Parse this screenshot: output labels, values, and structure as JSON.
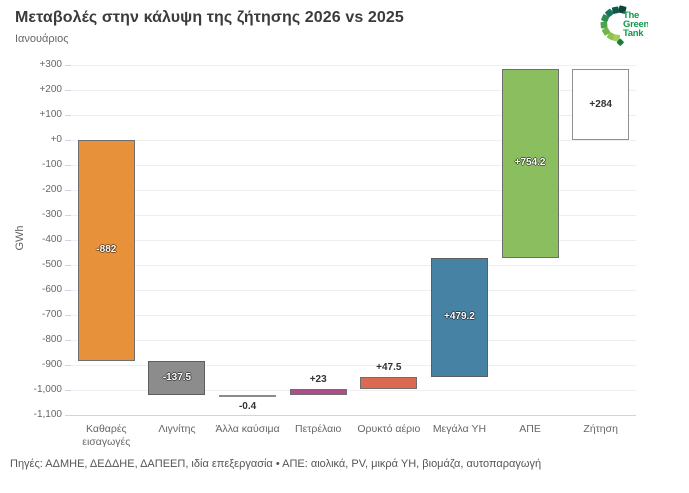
{
  "header": {
    "title": "Μεταβολές στην κάλυψη της ζήτησης 2026 vs 2025",
    "subtitle": "Ιανουάριος"
  },
  "logo": {
    "name": "The Green Tank",
    "lines": [
      "The",
      "Green",
      "Tank"
    ],
    "text_color": "#0f9b49"
  },
  "footer": {
    "sources": "Πηγές: ΑΔΜΗΕ, ΔΕΔΔΗΕ, ΔΑΠΕΕΠ, ιδία επεξεργασία • ΑΠΕ: αιολικά, PV, μικρά ΥΗ, βιομάζα, αυτοπαραγωγή"
  },
  "chart_data": {
    "type": "bar",
    "subtype": "waterfall",
    "title": "Μεταβολές στην κάλυψη της ζήτησης 2026 vs 2025",
    "subtitle": "Ιανουάριος",
    "xlabel": "",
    "ylabel": "GWh",
    "ylim": [
      -1100,
      300
    ],
    "ytick_step": 100,
    "grid": true,
    "legend": false,
    "categories": [
      "Καθαρές εισαγωγές",
      "Λιγνίτης",
      "Άλλα καύσιμα",
      "Πετρέλαιο",
      "Ορυκτό αέριο",
      "Μεγάλα ΥΗ",
      "ΑΠΕ",
      "Ζήτηση"
    ],
    "values": [
      -882,
      -137.5,
      -0.4,
      23,
      47.5,
      479.2,
      754.2,
      284
    ],
    "yticks": [
      {
        "value": 300,
        "label": "+300"
      },
      {
        "value": 200,
        "label": "+200"
      },
      {
        "value": 100,
        "label": "+100"
      },
      {
        "value": 0,
        "label": "+0"
      },
      {
        "value": -100,
        "label": "-100"
      },
      {
        "value": -200,
        "label": "-200"
      },
      {
        "value": -300,
        "label": "-300"
      },
      {
        "value": -400,
        "label": "-400"
      },
      {
        "value": -500,
        "label": "-500"
      },
      {
        "value": -600,
        "label": "-600"
      },
      {
        "value": -700,
        "label": "-700"
      },
      {
        "value": -800,
        "label": "-800"
      },
      {
        "value": -900,
        "label": "-900"
      },
      {
        "value": -1000,
        "label": "-1,000"
      },
      {
        "value": -1100,
        "label": "-1,100"
      }
    ],
    "points": [
      {
        "category": "Καθαρές εισαγωγές",
        "value": -882,
        "label": "-882",
        "from": 0,
        "to": -882,
        "color": "#e8913b",
        "border": "#6e6e6e",
        "label_pos": "inside",
        "label_style": "light"
      },
      {
        "category": "Λιγνίτης",
        "value": -137.5,
        "label": "-137.5",
        "from": -882,
        "to": -1019.5,
        "color": "#8c8c8c",
        "border": "#5e5e5e",
        "label_pos": "inside",
        "label_style": "light"
      },
      {
        "category": "Άλλα καύσιμα",
        "value": -0.4,
        "label": "-0.4",
        "from": -1019.5,
        "to": -1019.9,
        "color": "#8c8c8c",
        "border": "#8c8c8c",
        "label_pos": "below",
        "label_style": "dark"
      },
      {
        "category": "Πετρέλαιο",
        "value": 23,
        "label": "+23",
        "from": -1019.9,
        "to": -996.9,
        "color": "#ad4d8c",
        "border": "#6e6e6e",
        "label_pos": "above",
        "label_style": "dark"
      },
      {
        "category": "Ορυκτό αέριο",
        "value": 47.5,
        "label": "+47.5",
        "from": -996.9,
        "to": -949.4,
        "color": "#dc6a50",
        "border": "#6e6e6e",
        "label_pos": "above",
        "label_style": "dark"
      },
      {
        "category": "Μεγάλα ΥΗ",
        "value": 479.2,
        "label": "+479.2",
        "from": -949.4,
        "to": -470.2,
        "color": "#4682a4",
        "border": "#5e5e5e",
        "label_pos": "inside",
        "label_style": "light"
      },
      {
        "category": "ΑΠΕ",
        "value": 754.2,
        "label": "+754.2",
        "from": -470.2,
        "to": 284,
        "color": "#8bbe5f",
        "border": "#6e6e6e",
        "label_pos": "inside",
        "label_style": "light"
      },
      {
        "category": "Ζήτηση",
        "value": 284,
        "label": "+284",
        "from": 0,
        "to": 284,
        "color": "#ffffff",
        "border": "#8f8f8f",
        "label_pos": "inside",
        "label_style": "dark"
      }
    ]
  }
}
